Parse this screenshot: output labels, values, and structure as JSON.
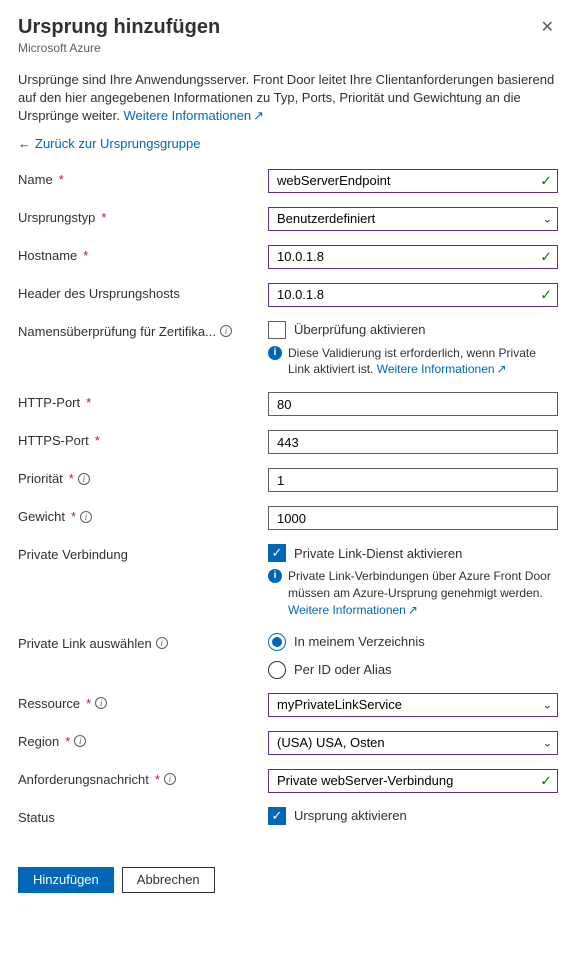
{
  "header": {
    "title": "Ursprung hinzufügen",
    "subtitle": "Microsoft Azure"
  },
  "description": "Ursprünge sind Ihre Anwendungsserver. Front Door leitet Ihre Clientanforderungen basierend auf den hier angegebenen Informationen zu Typ, Ports, Priorität und Gewichtung an die Ursprünge weiter. ",
  "more_info_label": "Weitere Informationen",
  "back_link": "Zurück zur Ursprungsgruppe",
  "fields": {
    "name": {
      "label": "Name",
      "value": "webServerEndpoint"
    },
    "origin_type": {
      "label": "Ursprungstyp",
      "value": "Benutzerdefiniert"
    },
    "hostname": {
      "label": "Hostname",
      "value": "10.0.1.8"
    },
    "host_header": {
      "label": "Header des Ursprungshosts",
      "value": "10.0.1.8"
    },
    "cert_check": {
      "label": "Namensüberprüfung für Zertifika...",
      "checkbox_label": "Überprüfung aktivieren",
      "info": "Diese Validierung ist erforderlich, wenn Private Link aktiviert ist. "
    },
    "http_port": {
      "label": "HTTP-Port",
      "value": "80"
    },
    "https_port": {
      "label": "HTTPS-Port",
      "value": "443"
    },
    "priority": {
      "label": "Priorität",
      "value": "1"
    },
    "weight": {
      "label": "Gewicht",
      "value": "1000"
    },
    "private_link": {
      "label": "Private Verbindung",
      "checkbox_label": "Private Link-Dienst aktivieren",
      "info": "Private Link-Verbindungen über Azure Front Door müssen am Azure-Ursprung genehmigt werden. "
    },
    "pl_select": {
      "label": "Private Link auswählen",
      "opt1": "In meinem Verzeichnis",
      "opt2": "Per ID oder Alias"
    },
    "resource": {
      "label": "Ressource",
      "value": "myPrivateLinkService"
    },
    "region": {
      "label": "Region",
      "value": "(USA) USA, Osten"
    },
    "req_msg": {
      "label": "Anforderungsnachricht",
      "value": "Private webServer-Verbindung"
    },
    "status": {
      "label": "Status",
      "checkbox_label": "Ursprung aktivieren"
    }
  },
  "buttons": {
    "add": "Hinzufügen",
    "cancel": "Abbrechen"
  }
}
